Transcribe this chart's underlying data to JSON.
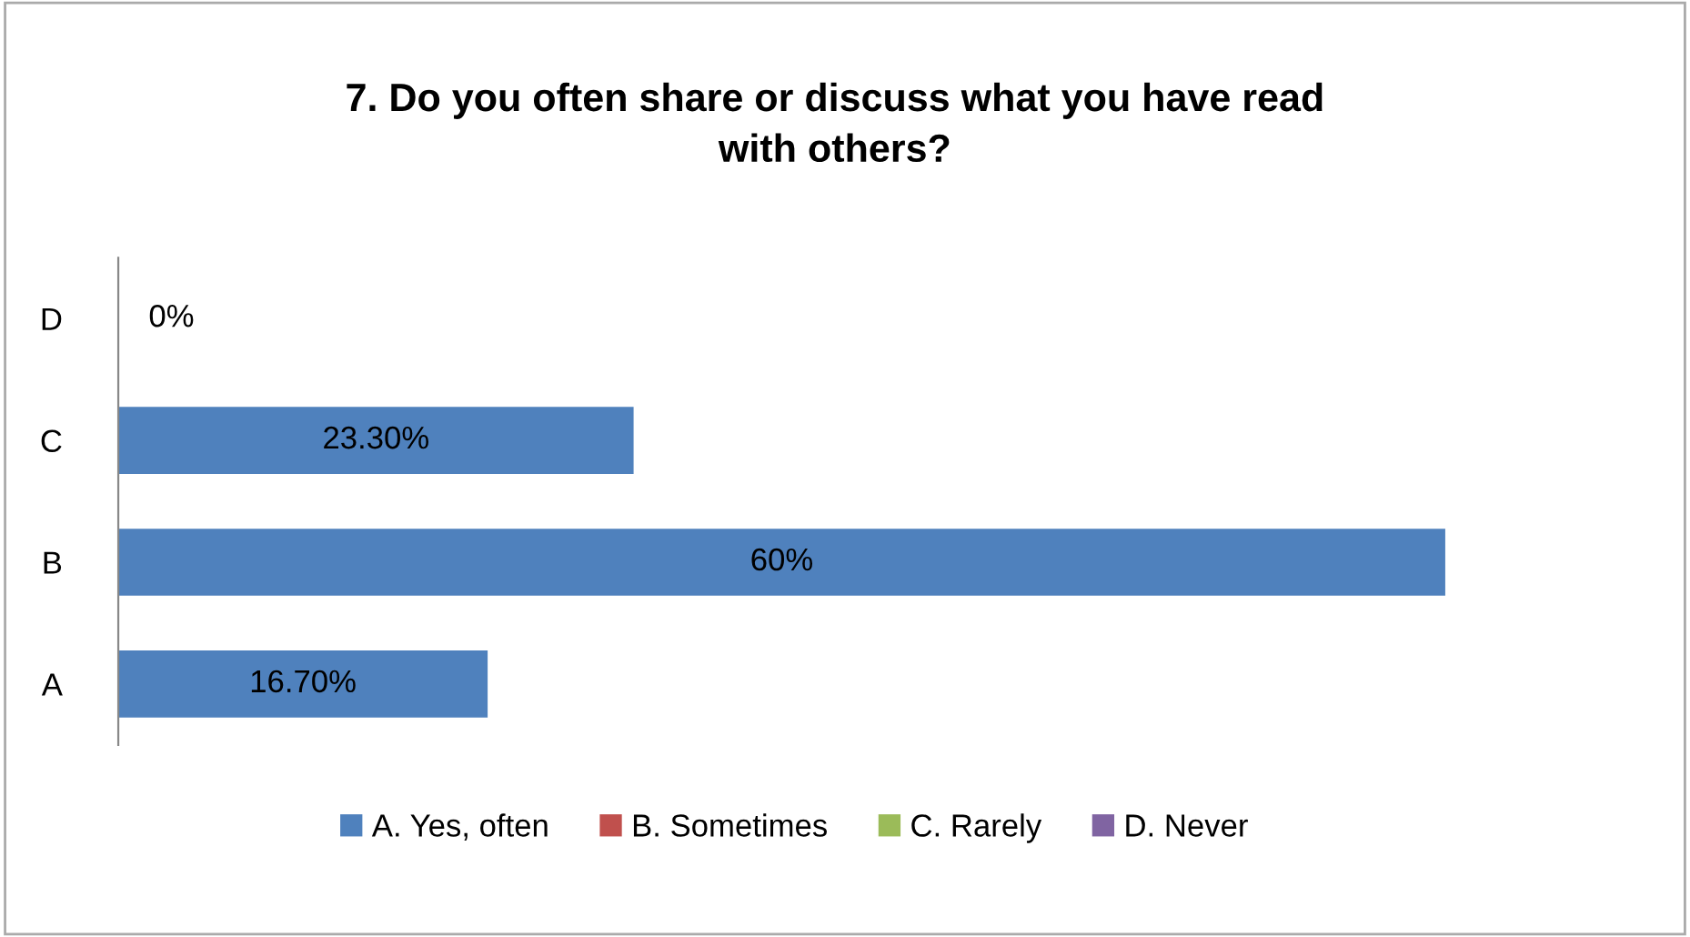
{
  "chart_data": {
    "type": "bar",
    "orientation": "horizontal",
    "title": "7. Do you often share or discuss what you have read\nwith others?",
    "categories": [
      "D",
      "C",
      "B",
      "A"
    ],
    "series": [
      {
        "name": "A. Yes, often",
        "color": "#4f81bd",
        "values": [
          0,
          23.3,
          60,
          16.7
        ],
        "value_labels": [
          "0%",
          "23.30%",
          "60%",
          "16.70%"
        ]
      },
      {
        "name": "B. Sometimes",
        "color": "#c0504d",
        "values": [
          null,
          null,
          null,
          null
        ]
      },
      {
        "name": "C. Rarely",
        "color": "#9bbb59",
        "values": [
          null,
          null,
          null,
          null
        ]
      },
      {
        "name": "D. Never",
        "color": "#8064a2",
        "values": [
          null,
          null,
          null,
          null
        ]
      }
    ],
    "tick_labels": "y",
    "grid": false,
    "legend": "bottom"
  }
}
